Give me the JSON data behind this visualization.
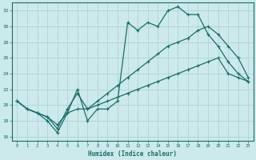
{
  "xlabel": "Humidex (Indice chaleur)",
  "bg_color": "#cce9eb",
  "grid_color": "#b0d4d6",
  "line_color": "#1a6e6a",
  "xlim": [
    -0.5,
    23.5
  ],
  "ylim": [
    15.5,
    33.0
  ],
  "xticks": [
    0,
    1,
    2,
    3,
    4,
    5,
    6,
    7,
    8,
    9,
    10,
    11,
    12,
    13,
    14,
    15,
    16,
    17,
    18,
    19,
    20,
    21,
    22,
    23
  ],
  "yticks": [
    16,
    18,
    20,
    22,
    24,
    26,
    28,
    30,
    32
  ],
  "line1_x": [
    0,
    1,
    2,
    3,
    4,
    5,
    6,
    7,
    8,
    9,
    10,
    11,
    12,
    13,
    14,
    15,
    16,
    17,
    18,
    19,
    20,
    21,
    22,
    23
  ],
  "line1_y": [
    20.5,
    19.5,
    19.0,
    18.0,
    16.5,
    19.0,
    22.0,
    18.0,
    19.5,
    19.5,
    20.5,
    30.5,
    29.5,
    30.5,
    30.0,
    32.0,
    32.5,
    31.5,
    31.5,
    29.0,
    27.5,
    25.5,
    24.0,
    23.0
  ],
  "line2_x": [
    0,
    1,
    2,
    3,
    4,
    5,
    6,
    7,
    8,
    9,
    10,
    11,
    12,
    13,
    14,
    15,
    16,
    17,
    18,
    19,
    20,
    21,
    22,
    23
  ],
  "line2_y": [
    20.5,
    19.5,
    19.0,
    18.5,
    17.0,
    19.5,
    21.5,
    19.5,
    20.5,
    21.5,
    22.5,
    23.5,
    24.5,
    25.5,
    26.5,
    27.5,
    28.0,
    28.5,
    29.5,
    30.0,
    29.0,
    27.5,
    26.0,
    23.5
  ],
  "line3_x": [
    0,
    1,
    2,
    3,
    4,
    5,
    6,
    7,
    8,
    9,
    10,
    11,
    12,
    13,
    14,
    15,
    16,
    17,
    18,
    19,
    20,
    21,
    22,
    23
  ],
  "line3_y": [
    20.5,
    19.5,
    19.0,
    18.5,
    17.5,
    19.0,
    19.5,
    19.5,
    20.0,
    20.5,
    21.0,
    21.5,
    22.0,
    22.5,
    23.0,
    23.5,
    24.0,
    24.5,
    25.0,
    25.5,
    26.0,
    24.0,
    23.5,
    23.0
  ]
}
